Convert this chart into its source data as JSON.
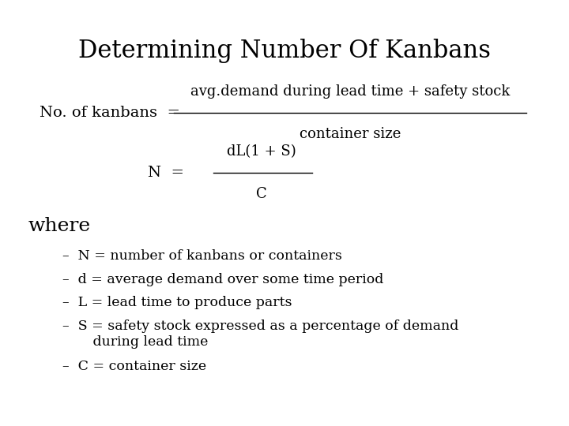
{
  "title": "Determining Number Of Kanbans",
  "title_fontsize": 22,
  "bg_color": "#ffffff",
  "text_color": "#000000",
  "font_family": "DejaVu Serif",
  "formula_label": "No. of kanbans  =",
  "formula_numerator": "avg.demand during lead time + safety stock",
  "formula_denominator": "container size",
  "n_eq_label": "N  =",
  "n_numerator": "dL(1 + S)",
  "n_denominator": "C",
  "where_text": "where",
  "bullets": [
    "–  N = number of kanbans or containers",
    "–  d = average demand over some time period",
    "–  L = lead time to produce parts",
    "–  S = safety stock expressed as a percentage of demand\n       during lead time",
    "–  C = container size"
  ]
}
